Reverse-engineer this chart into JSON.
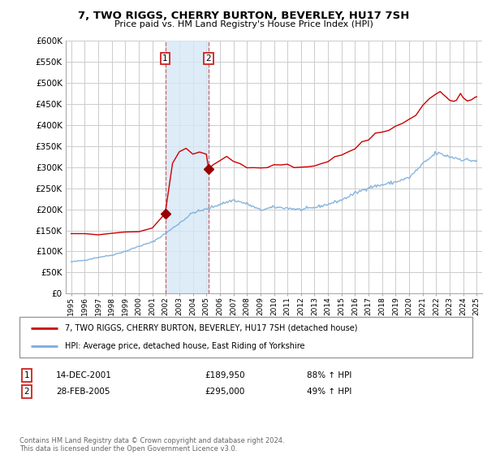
{
  "title": "7, TWO RIGGS, CHERRY BURTON, BEVERLEY, HU17 7SH",
  "subtitle": "Price paid vs. HM Land Registry's House Price Index (HPI)",
  "ylabel_ticks": [
    "£0",
    "£50K",
    "£100K",
    "£150K",
    "£200K",
    "£250K",
    "£300K",
    "£350K",
    "£400K",
    "£450K",
    "£500K",
    "£550K",
    "£600K"
  ],
  "ytick_vals": [
    0,
    50000,
    100000,
    150000,
    200000,
    250000,
    300000,
    350000,
    400000,
    450000,
    500000,
    550000,
    600000
  ],
  "ylim": [
    0,
    600000
  ],
  "xlim_start": 1994.6,
  "xlim_end": 2025.4,
  "sale1_year": 2001.958,
  "sale1_price": 189950,
  "sale2_year": 2005.164,
  "sale2_price": 295000,
  "red_line_color": "#cc0000",
  "blue_line_color": "#7aaddb",
  "shade_color": "#d6e8f7",
  "shade_alpha": 0.8,
  "marker_color": "#990000",
  "transaction_box_color": "#cc2222",
  "background_color": "#ffffff",
  "grid_color": "#cccccc",
  "legend_entry1": "7, TWO RIGGS, CHERRY BURTON, BEVERLEY, HU17 7SH (detached house)",
  "legend_entry2": "HPI: Average price, detached house, East Riding of Yorkshire",
  "trans1_num": "1",
  "trans1_date": "14-DEC-2001",
  "trans1_price": "£189,950",
  "trans1_hpi": "88% ↑ HPI",
  "trans2_num": "2",
  "trans2_date": "28-FEB-2005",
  "trans2_price": "£295,000",
  "trans2_hpi": "49% ↑ HPI",
  "footer": "Contains HM Land Registry data © Crown copyright and database right 2024.\nThis data is licensed under the Open Government Licence v3.0."
}
